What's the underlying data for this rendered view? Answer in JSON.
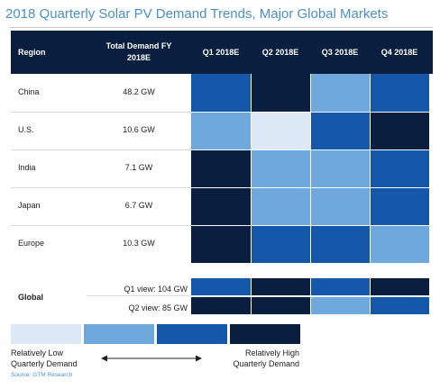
{
  "title": "2018 Quarterly Solar PV Demand Trends, Major Global Markets",
  "header": {
    "region": "Region",
    "total_demand": "Total Demand FY 2018E",
    "q1": "Q1 2018E",
    "q2": "Q2 2018E",
    "q3": "Q3 2018E",
    "q4": "Q4 2018E"
  },
  "colors": {
    "1": "#dce8f6",
    "2": "#6fa8dc",
    "3": "#1557a8",
    "4": "#0a1f3f"
  },
  "chart_data": {
    "type": "heatmap",
    "title": "2018 Quarterly Solar PV Demand Trends, Major Global Markets",
    "columns": [
      "Q1 2018E",
      "Q2 2018E",
      "Q3 2018E",
      "Q4 2018E"
    ],
    "scale": "1 = Relatively Low Quarterly Demand, 4 = Relatively High Quarterly Demand",
    "rows": [
      {
        "region": "China",
        "total": "48.2 GW",
        "levels": [
          3,
          4,
          2,
          3
        ]
      },
      {
        "region": "U.S.",
        "total": "10.6 GW",
        "levels": [
          2,
          1,
          3,
          4
        ]
      },
      {
        "region": "India",
        "total": "7.1 GW",
        "levels": [
          4,
          2,
          2,
          3
        ]
      },
      {
        "region": "Japan",
        "total": "6.7 GW",
        "levels": [
          4,
          2,
          2,
          3
        ]
      },
      {
        "region": "Europe",
        "total": "10.3 GW",
        "levels": [
          4,
          3,
          3,
          2
        ]
      }
    ],
    "global": {
      "label": "Global",
      "views": [
        {
          "label": "Q1 view: 104 GW",
          "levels": [
            3,
            4,
            3,
            4
          ]
        },
        {
          "label": "Q2 view: 85 GW",
          "levels": [
            4,
            4,
            2,
            3
          ]
        }
      ]
    }
  },
  "legend": {
    "low_line1": "Relatively Low",
    "low_line2": "Quarterly Demand",
    "high_line1": "Relatively High",
    "high_line2": "Quarterly Demand",
    "levels": [
      1,
      2,
      3,
      4
    ]
  },
  "source": "Source: GTM Research"
}
